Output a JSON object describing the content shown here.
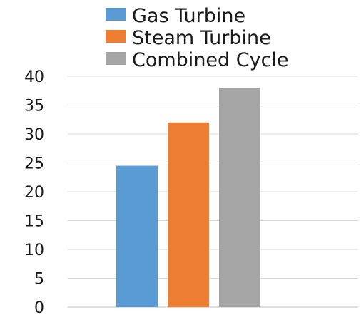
{
  "chart_data": {
    "type": "bar",
    "categories": [
      ""
    ],
    "series": [
      {
        "name": "Gas Turbine",
        "values": [
          24.5
        ],
        "color": "#5B9BD5"
      },
      {
        "name": "Steam Turbine",
        "values": [
          32
        ],
        "color": "#ED7D31"
      },
      {
        "name": "Combined Cycle",
        "values": [
          38
        ],
        "color": "#A5A5A5"
      }
    ],
    "title": "",
    "xlabel": "",
    "ylabel": "",
    "ylim": [
      0,
      40
    ],
    "yticks": [
      "0",
      "5",
      "10",
      "15",
      "20",
      "25",
      "30",
      "35",
      "40"
    ],
    "grid": true,
    "legend_position": "top"
  }
}
